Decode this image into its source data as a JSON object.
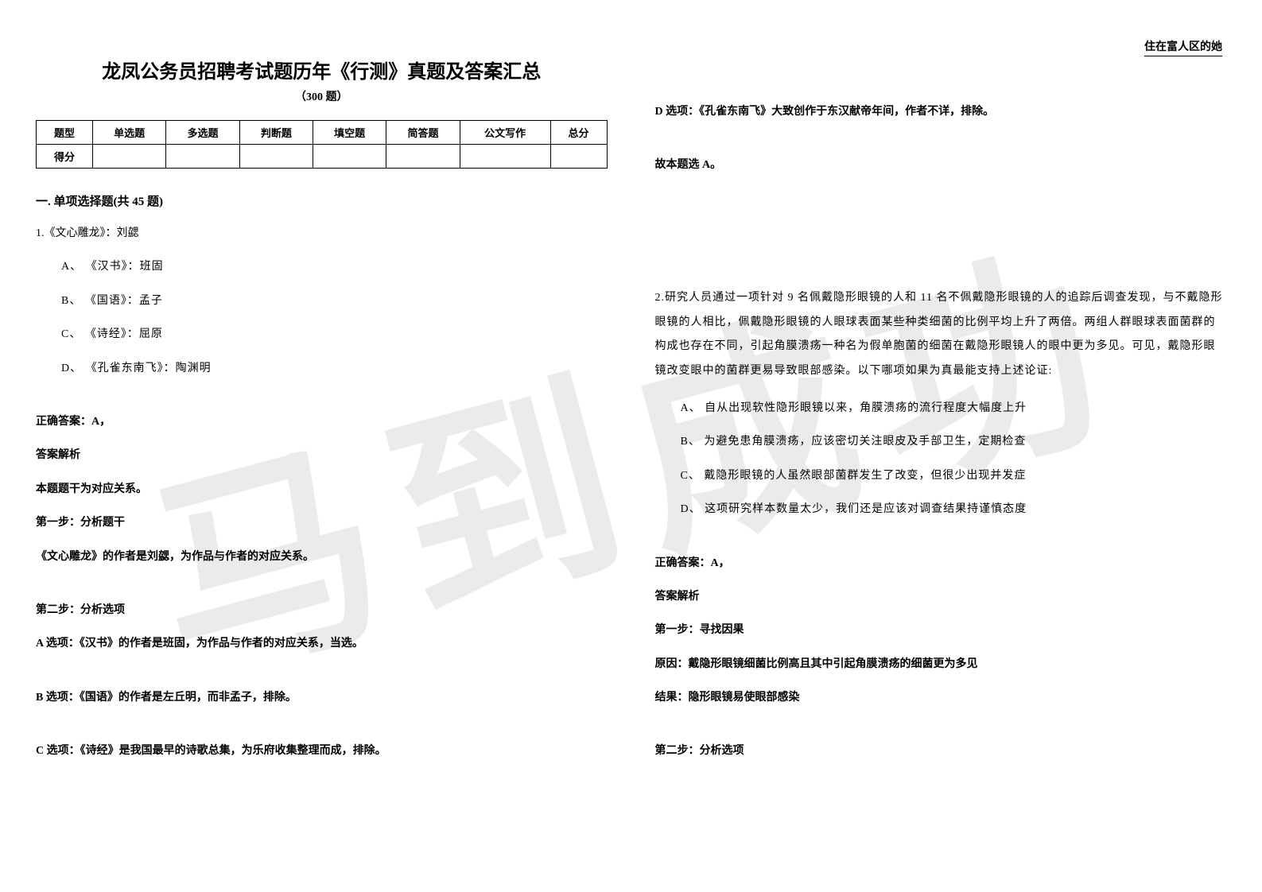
{
  "header_right": "住在富人区的她",
  "watermark": "马到成功",
  "title": "龙凤公务员招聘考试题历年《行测》真题及答案汇总",
  "subtitle": "（300 题）",
  "score_table": {
    "headers": [
      "题型",
      "单选题",
      "多选题",
      "判断题",
      "填空题",
      "简答题",
      "公文写作",
      "总分"
    ],
    "row_label": "得分"
  },
  "section1": {
    "title": "一. 单项选择题(共 45 题)",
    "q1": {
      "stem": "1.《文心雕龙》：刘勰",
      "opts": {
        "A": "A、 《汉书》：班固",
        "B": "B、 《国语》：孟子",
        "C": "C、 《诗经》：屈原",
        "D": "D、 《孔雀东南飞》：陶渊明"
      },
      "answer_label": "正确答案：A，",
      "analysis_label": "答案解析",
      "line1": "本题题干为对应关系。",
      "step1_label": "第一步：分析题干",
      "step1_text": "《文心雕龙》的作者是刘勰，为作品与作者的对应关系。",
      "step2_label": "第二步：分析选项",
      "optA_text": "A 选项：《汉书》的作者是班固，为作品与作者的对应关系，当选。",
      "optB_text": "B 选项：《国语》的作者是左丘明，而非孟子，排除。",
      "optC_text": "C 选项：《诗经》是我国最早的诗歌总集，为乐府收集整理而成，排除。",
      "optD_text": "D 选项：《孔雀东南飞》大致创作于东汉献帝年间，作者不详，排除。",
      "conclusion": "故本题选 A。"
    },
    "q2": {
      "stem": "2.研究人员通过一项针对 9 名佩戴隐形眼镜的人和 11 名不佩戴隐形眼镜的人的追踪后调查发现，与不戴隐形眼镜的人相比，佩戴隐形眼镜的人眼球表面某些种类细菌的比例平均上升了两倍。两组人群眼球表面菌群的构成也存在不同，引起角膜溃疡一种名为假单胞菌的细菌在戴隐形眼镜人的眼中更为多见。可见，戴隐形眼镜改变眼中的菌群更易导致眼部感染。以下哪项如果为真最能支持上述论证:",
      "opts": {
        "A": "A、 自从出现软性隐形眼镜以来，角膜溃疡的流行程度大幅度上升",
        "B": "B、 为避免患角膜溃疡，应该密切关注眼皮及手部卫生，定期检查",
        "C": "C、 戴隐形眼镜的人虽然眼部菌群发生了改变，但很少出现并发症",
        "D": "D、 这项研究样本数量太少，我们还是应该对调查结果持谨慎态度"
      },
      "answer_label": "正确答案：A，",
      "analysis_label": "答案解析",
      "step1_label": "第一步：寻找因果",
      "cause": "原因：戴隐形眼镜细菌比例高且其中引起角膜溃疡的细菌更为多见",
      "result": "结果：隐形眼镜易使眼部感染",
      "step2_label": "第二步：分析选项"
    }
  },
  "colors": {
    "text": "#000000",
    "background": "#ffffff",
    "watermark": "rgba(0,0,0,0.08)",
    "border": "#000000"
  }
}
